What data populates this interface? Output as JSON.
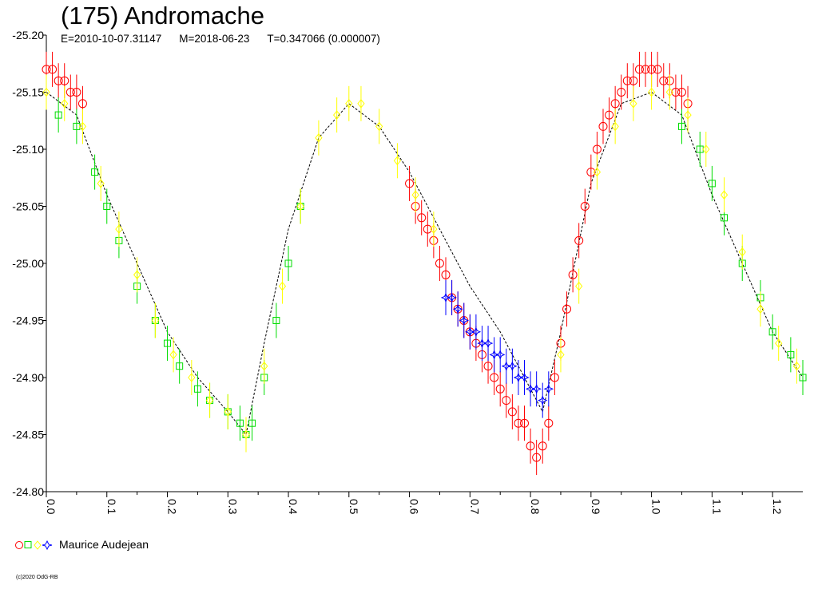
{
  "header": {
    "title": "(175) Andromache",
    "epoch": "E=2010-10-07.31147",
    "modified": "M=2018-06-23",
    "period": "T=0.347066 (0.000007)"
  },
  "legend": {
    "observer": "Maurice Audejean"
  },
  "footer": {
    "copyright": "(c)2020 OdG-RB"
  },
  "colors": {
    "red": "#ff0000",
    "green": "#00dd00",
    "yellow": "#ffff00",
    "blue": "#0000ff",
    "model": "#000000"
  },
  "chart_data": {
    "type": "scatter",
    "title": "(175) Andromache",
    "xlim": [
      0.0,
      1.25
    ],
    "ylim": [
      -25.2,
      -24.8
    ],
    "y_axis_inverted": true,
    "x_ticks": [
      "0.0",
      "0.1",
      "0.2",
      "0.3",
      "0.4",
      "0.5",
      "0.6",
      "0.7",
      "0.8",
      "0.9",
      "1.0",
      "1.1",
      "1.2"
    ],
    "y_ticks": [
      "-25.20",
      "-25.15",
      "-25.10",
      "-25.05",
      "-25.00",
      "-24.95",
      "-24.90",
      "-24.85",
      "-24.80"
    ],
    "model_curve": {
      "x": [
        0.0,
        0.05,
        0.1,
        0.15,
        0.2,
        0.25,
        0.3,
        0.33,
        0.36,
        0.4,
        0.45,
        0.5,
        0.55,
        0.6,
        0.65,
        0.7,
        0.75,
        0.8,
        0.82,
        0.85,
        0.9,
        0.95,
        1.0,
        1.05,
        1.1,
        1.15,
        1.2,
        1.25
      ],
      "y": [
        -25.15,
        -25.13,
        -25.06,
        -25.0,
        -24.94,
        -24.9,
        -24.87,
        -24.85,
        -24.93,
        -25.03,
        -25.11,
        -25.14,
        -25.12,
        -25.08,
        -25.03,
        -24.98,
        -24.94,
        -24.89,
        -24.87,
        -24.94,
        -25.07,
        -25.14,
        -25.15,
        -25.13,
        -25.06,
        -25.0,
        -24.94,
        -24.9
      ]
    },
    "series": [
      {
        "marker": "circle",
        "color": "red",
        "x": [
          0.0,
          0.01,
          0.02,
          0.03,
          0.04,
          0.05,
          0.06,
          0.6,
          0.61,
          0.62,
          0.63,
          0.64,
          0.65,
          0.66,
          0.67,
          0.68,
          0.69,
          0.7,
          0.71,
          0.72,
          0.73,
          0.74,
          0.75,
          0.76,
          0.77,
          0.78,
          0.79,
          0.8,
          0.81,
          0.82,
          0.83,
          0.84,
          0.85,
          0.86,
          0.87,
          0.88,
          0.89,
          0.9,
          0.91,
          0.92,
          0.93,
          0.94,
          0.95,
          0.96,
          0.97,
          0.98,
          0.99,
          1.0,
          1.01,
          1.02,
          1.03,
          1.04,
          1.05,
          1.06
        ],
        "y": [
          -25.17,
          -25.17,
          -25.16,
          -25.16,
          -25.15,
          -25.15,
          -25.14,
          -25.07,
          -25.05,
          -25.04,
          -25.03,
          -25.02,
          -25.0,
          -24.99,
          -24.97,
          -24.96,
          -24.95,
          -24.94,
          -24.93,
          -24.92,
          -24.91,
          -24.9,
          -24.89,
          -24.88,
          -24.87,
          -24.86,
          -24.86,
          -24.84,
          -24.83,
          -24.84,
          -24.86,
          -24.9,
          -24.93,
          -24.96,
          -24.99,
          -25.02,
          -25.05,
          -25.08,
          -25.1,
          -25.12,
          -25.13,
          -25.14,
          -25.15,
          -25.16,
          -25.16,
          -25.17,
          -25.17,
          -25.17,
          -25.17,
          -25.16,
          -25.16,
          -25.15,
          -25.15,
          -25.14
        ]
      },
      {
        "marker": "square",
        "color": "green",
        "x": [
          0.02,
          0.05,
          0.08,
          0.1,
          0.12,
          0.15,
          0.18,
          0.2,
          0.22,
          0.25,
          0.27,
          0.3,
          0.32,
          0.33,
          0.34,
          0.36,
          0.38,
          0.4,
          0.42,
          1.05,
          1.08,
          1.1,
          1.12,
          1.15,
          1.18,
          1.2,
          1.23,
          1.25
        ],
        "y": [
          -25.13,
          -25.12,
          -25.08,
          -25.05,
          -25.02,
          -24.98,
          -24.95,
          -24.93,
          -24.91,
          -24.89,
          -24.88,
          -24.87,
          -24.86,
          -24.85,
          -24.86,
          -24.9,
          -24.95,
          -25.0,
          -25.05,
          -25.12,
          -25.1,
          -25.07,
          -25.04,
          -25.0,
          -24.97,
          -24.94,
          -24.92,
          -24.9
        ]
      },
      {
        "marker": "diamond",
        "color": "yellow",
        "x": [
          0.0,
          0.03,
          0.06,
          0.09,
          0.12,
          0.15,
          0.18,
          0.21,
          0.24,
          0.27,
          0.3,
          0.33,
          0.36,
          0.39,
          0.42,
          0.45,
          0.48,
          0.5,
          0.52,
          0.55,
          0.58,
          0.61,
          0.64,
          0.85,
          0.88,
          0.91,
          0.94,
          0.97,
          1.0,
          1.03,
          1.06,
          1.09,
          1.12,
          1.15,
          1.18,
          1.21,
          1.24
        ],
        "y": [
          -25.15,
          -25.14,
          -25.12,
          -25.07,
          -25.03,
          -24.99,
          -24.95,
          -24.92,
          -24.9,
          -24.88,
          -24.87,
          -24.85,
          -24.91,
          -24.98,
          -25.05,
          -25.11,
          -25.13,
          -25.14,
          -25.14,
          -25.12,
          -25.09,
          -25.06,
          -25.03,
          -24.92,
          -24.98,
          -25.08,
          -25.12,
          -25.14,
          -25.15,
          -25.15,
          -25.13,
          -25.1,
          -25.06,
          -25.01,
          -24.96,
          -24.93,
          -24.91
        ]
      },
      {
        "marker": "star",
        "color": "blue",
        "x": [
          0.66,
          0.67,
          0.68,
          0.69,
          0.7,
          0.71,
          0.72,
          0.73,
          0.74,
          0.75,
          0.76,
          0.77,
          0.78,
          0.79,
          0.8,
          0.81,
          0.82,
          0.83
        ],
        "y": [
          -24.97,
          -24.97,
          -24.96,
          -24.95,
          -24.94,
          -24.94,
          -24.93,
          -24.93,
          -24.92,
          -24.92,
          -24.91,
          -24.91,
          -24.9,
          -24.9,
          -24.89,
          -24.89,
          -24.88,
          -24.89
        ]
      }
    ]
  }
}
